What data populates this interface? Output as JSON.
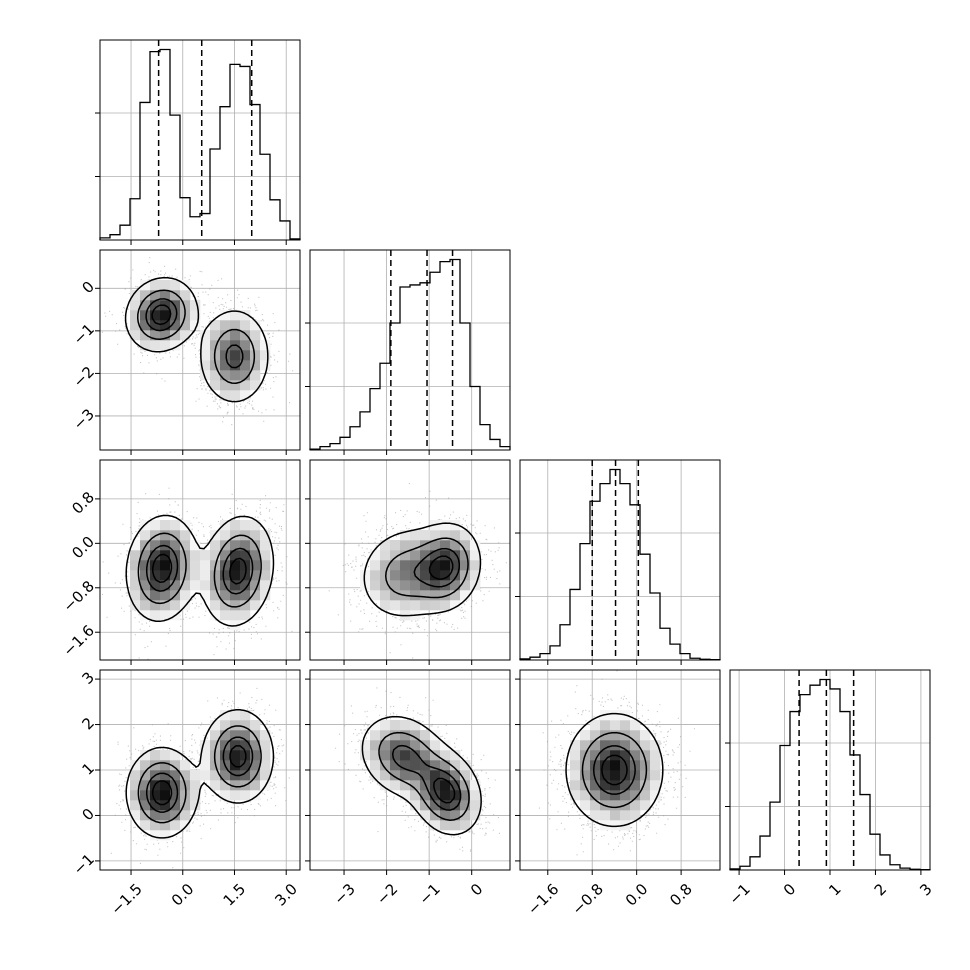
{
  "chart_data": {
    "type": "corner",
    "title": "",
    "xlabel": "",
    "ylabel": "",
    "grid": true,
    "colors": {
      "line": "#000000",
      "grid": "#b0b0b0",
      "points": "#9a9a9a"
    },
    "parameters": [
      {
        "range": [
          -2.4,
          3.4
        ],
        "ticks": [
          "-1.5",
          "0.0",
          "1.5",
          "3.0"
        ],
        "tick_values": [
          -1.5,
          0.0,
          1.5,
          3.0
        ],
        "quantiles": [
          -0.7,
          0.55,
          2.0
        ]
      },
      {
        "range": [
          -3.8,
          0.9
        ],
        "ticks": [
          "-3",
          "-2",
          "-1",
          "0"
        ],
        "tick_values": [
          -3,
          -2,
          -1,
          0
        ],
        "quantiles": [
          -1.9,
          -1.05,
          -0.45
        ]
      },
      {
        "range": [
          -2.1,
          1.5
        ],
        "ticks": [
          "-1.6",
          "-0.8",
          "0.0",
          "0.8"
        ],
        "tick_values": [
          -1.6,
          -0.8,
          0.0,
          0.8
        ],
        "quantiles": [
          -0.8,
          -0.38,
          0.03
        ]
      },
      {
        "range": [
          -1.2,
          3.2
        ],
        "ticks": [
          "-1",
          "0",
          "1",
          "2",
          "3"
        ],
        "tick_values": [
          -1,
          0,
          1,
          2,
          3
        ],
        "quantiles": [
          0.32,
          0.92,
          1.52
        ]
      }
    ],
    "histograms": [
      {
        "param": 0,
        "bin_edges": [
          -2.4,
          -2.11,
          -1.82,
          -1.53,
          -1.24,
          -0.95,
          -0.66,
          -0.37,
          -0.08,
          0.21,
          0.5,
          0.79,
          1.08,
          1.37,
          1.66,
          1.95,
          2.24,
          2.53,
          2.82,
          3.11,
          3.4
        ],
        "counts": [
          2,
          5,
          14,
          39,
          130,
          178,
          180,
          118,
          40,
          22,
          25,
          86,
          126,
          166,
          164,
          128,
          81,
          38,
          18,
          1
        ]
      },
      {
        "param": 1,
        "bin_edges": [
          -3.8,
          -3.565,
          -3.33,
          -3.095,
          -2.86,
          -2.625,
          -2.39,
          -2.155,
          -1.92,
          -1.685,
          -1.45,
          -1.215,
          -0.98,
          -0.745,
          -0.51,
          -0.275,
          -0.04,
          0.195,
          0.43,
          0.665,
          0.9
        ],
        "counts": [
          2,
          8,
          15,
          30,
          55,
          90,
          145,
          205,
          300,
          385,
          390,
          395,
          420,
          445,
          450,
          300,
          150,
          60,
          25,
          8
        ]
      },
      {
        "param": 2,
        "bin_edges": [
          -2.1,
          -1.92,
          -1.74,
          -1.56,
          -1.38,
          -1.2,
          -1.02,
          -0.84,
          -0.66,
          -0.48,
          -0.3,
          -0.12,
          0.06,
          0.24,
          0.42,
          0.6,
          0.78,
          0.96,
          1.14,
          1.32,
          1.5
        ],
        "counts": [
          3,
          8,
          18,
          40,
          100,
          200,
          330,
          450,
          500,
          540,
          500,
          440,
          300,
          190,
          90,
          45,
          18,
          5,
          2,
          1
        ]
      },
      {
        "param": 3,
        "bin_edges": [
          -1.2,
          -0.98,
          -0.76,
          -0.54,
          -0.32,
          -0.1,
          0.12,
          0.34,
          0.56,
          0.78,
          1.0,
          1.22,
          1.44,
          1.66,
          1.88,
          2.1,
          2.32,
          2.54,
          2.76,
          2.98,
          3.2
        ],
        "counts": [
          3,
          10,
          35,
          90,
          180,
          330,
          420,
          465,
          490,
          505,
          480,
          420,
          305,
          200,
          95,
          40,
          14,
          5,
          2,
          1
        ]
      }
    ],
    "panels_2d": [
      {
        "x_param": 0,
        "y_param": 1,
        "components": [
          {
            "mean": [
              -0.62,
              -0.62
            ],
            "sigma": [
              0.5,
              0.42
            ],
            "rho": 0.1,
            "weight": 0.5
          },
          {
            "mean": [
              1.5,
              -1.6
            ],
            "sigma": [
              0.5,
              0.55
            ],
            "rho": 0.0,
            "weight": 0.5
          }
        ]
      },
      {
        "x_param": 0,
        "y_param": 2,
        "components": [
          {
            "mean": [
              -0.6,
              -0.45
            ],
            "sigma": [
              0.5,
              0.46
            ],
            "rho": 0.1,
            "weight": 0.5
          },
          {
            "mean": [
              1.6,
              -0.5
            ],
            "sigma": [
              0.5,
              0.48
            ],
            "rho": 0.15,
            "weight": 0.5
          }
        ]
      },
      {
        "x_param": 0,
        "y_param": 3,
        "components": [
          {
            "mean": [
              -0.6,
              0.5
            ],
            "sigma": [
              0.5,
              0.48
            ],
            "rho": 0.0,
            "weight": 0.5
          },
          {
            "mean": [
              1.6,
              1.3
            ],
            "sigma": [
              0.5,
              0.5
            ],
            "rho": 0.0,
            "weight": 0.5
          }
        ]
      },
      {
        "x_param": 1,
        "y_param": 2,
        "components": [
          {
            "mean": [
              -0.6,
              -0.42
            ],
            "sigma": [
              0.4,
              0.38
            ],
            "rho": 0.1,
            "weight": 0.5
          },
          {
            "mean": [
              -1.55,
              -0.55
            ],
            "sigma": [
              0.55,
              0.42
            ],
            "rho": 0.1,
            "weight": 0.5
          }
        ]
      },
      {
        "x_param": 1,
        "y_param": 3,
        "components": [
          {
            "mean": [
              -0.6,
              0.5
            ],
            "sigma": [
              0.4,
              0.45
            ],
            "rho": -0.2,
            "weight": 0.5
          },
          {
            "mean": [
              -1.6,
              1.3
            ],
            "sigma": [
              0.5,
              0.45
            ],
            "rho": -0.2,
            "weight": 0.5
          }
        ]
      },
      {
        "x_param": 2,
        "y_param": 3,
        "components": [
          {
            "mean": [
              -0.4,
              1.0
            ],
            "sigma": [
              0.42,
              0.6
            ],
            "rho": 0.0,
            "weight": 1.0
          }
        ]
      }
    ]
  }
}
